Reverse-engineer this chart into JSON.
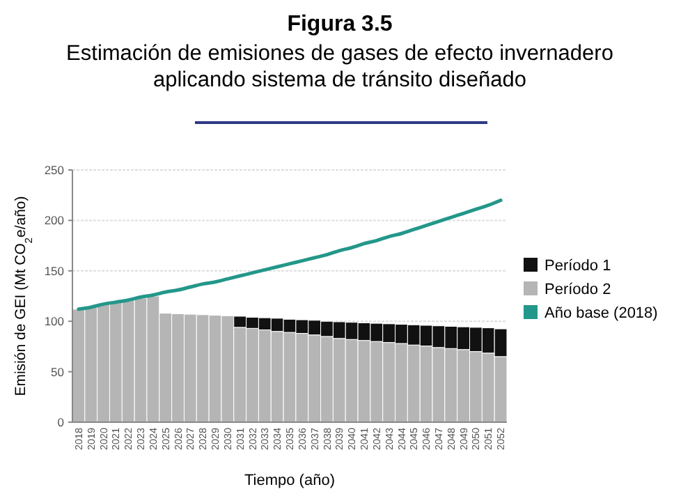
{
  "chart_data": {
    "type": "bar",
    "stacked": true,
    "title": "Figura 3.5",
    "subtitle": "Estimación de emisiones de gases de efecto invernadero aplicando sistema de tránsito diseñado",
    "xlabel": "Tiempo (año)",
    "ylabel": "Emisión de GEI (Mt CO$_{2}$e/año)",
    "categories": [
      "2018",
      "2019",
      "2020",
      "2021",
      "2022",
      "2023",
      "2024",
      "2025",
      "2026",
      "2027",
      "2028",
      "2029",
      "2030",
      "2031",
      "2032",
      "2033",
      "2034",
      "2035",
      "2036",
      "2037",
      "2038",
      "2039",
      "2040",
      "2041",
      "2042",
      "2043",
      "2044",
      "2045",
      "2046",
      "2047",
      "2048",
      "2049",
      "2050",
      "2051",
      "2052"
    ],
    "ylim": [
      0,
      250
    ],
    "yticks": [
      0,
      50,
      100,
      150,
      200,
      250
    ],
    "grid": "y",
    "legend": "right",
    "series": [
      {
        "name": "Período 2",
        "color": "#b5b5b5",
        "values": [
          112,
          115,
          117,
          119,
          121,
          123,
          125,
          108,
          107.5,
          107,
          106.5,
          106,
          105.5,
          94,
          93,
          91.5,
          90,
          89,
          88,
          86.5,
          85,
          83,
          82,
          81,
          80,
          79,
          78,
          76.5,
          75.5,
          74,
          73,
          72,
          70,
          68.5,
          65
        ]
      },
      {
        "name": "Período 1",
        "color": "#111111",
        "values": [
          0,
          0,
          0,
          0,
          0,
          0,
          0,
          0,
          0,
          0,
          0,
          0,
          0,
          11,
          11,
          12,
          13,
          13,
          13.5,
          14.5,
          15,
          16.5,
          17,
          17.5,
          18,
          18.5,
          19,
          20,
          20.5,
          21.5,
          22,
          22.5,
          24,
          25,
          27.5
        ]
      },
      {
        "name": "Año base (2018)",
        "type": "line",
        "color": "#23978a",
        "values": [
          112,
          114,
          117,
          119,
          121,
          124,
          126,
          129,
          131,
          134,
          137,
          139,
          142,
          145,
          148,
          151,
          154,
          157,
          160,
          163,
          166,
          170,
          173,
          177,
          180,
          184,
          187,
          191,
          195,
          199,
          203,
          207,
          211,
          215,
          220
        ]
      }
    ]
  }
}
